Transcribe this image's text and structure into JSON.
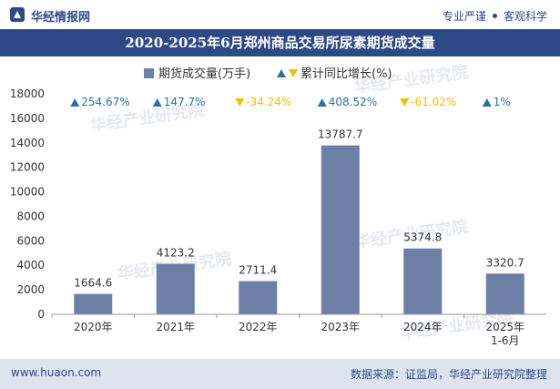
{
  "header": {
    "brand": "华经情报网",
    "tag1": "专业严谨",
    "tag2": "客观科学"
  },
  "title": "2020-2025年6月郑州商品交易所尿素期货成交量",
  "footer": {
    "url": "www.huaon.com",
    "source": "数据来源：证监局，华经产业研究院整理"
  },
  "watermark": {
    "text": "华经产业研究院",
    "url": "www.huaon.com"
  },
  "colors": {
    "bar": "#6e7fa5",
    "up": "#2e6fa3",
    "down": "#f0c000",
    "header": "#2e4a86",
    "footer_bg": "#dde4ef"
  },
  "chart_data": {
    "type": "bar",
    "categories": [
      "2020年",
      "2021年",
      "2022年",
      "2023年",
      "2024年",
      "2025年\n1-6月"
    ],
    "series": [
      {
        "name": "期货成交量(万手)",
        "values": [
          1664.6,
          4123.2,
          2711.4,
          13787.7,
          5374.8,
          3320.7
        ]
      },
      {
        "name": "累计同比增长(%)",
        "values": [
          254.67,
          147.7,
          -34.24,
          408.52,
          -61.02,
          1
        ]
      }
    ],
    "value_labels": [
      "1664.6",
      "4123.2",
      "2711.4",
      "13787.7",
      "5374.8",
      "3320.7"
    ],
    "growth_labels": [
      "254.67%",
      "147.7%",
      "-34.24%",
      "408.52%",
      "-61.02%",
      "1%"
    ],
    "yticks": [
      "0",
      "2000",
      "4000",
      "6000",
      "8000",
      "10000",
      "12000",
      "14000",
      "16000",
      "18000"
    ],
    "ylim": [
      0,
      18000
    ],
    "legend_position": "top-center"
  }
}
